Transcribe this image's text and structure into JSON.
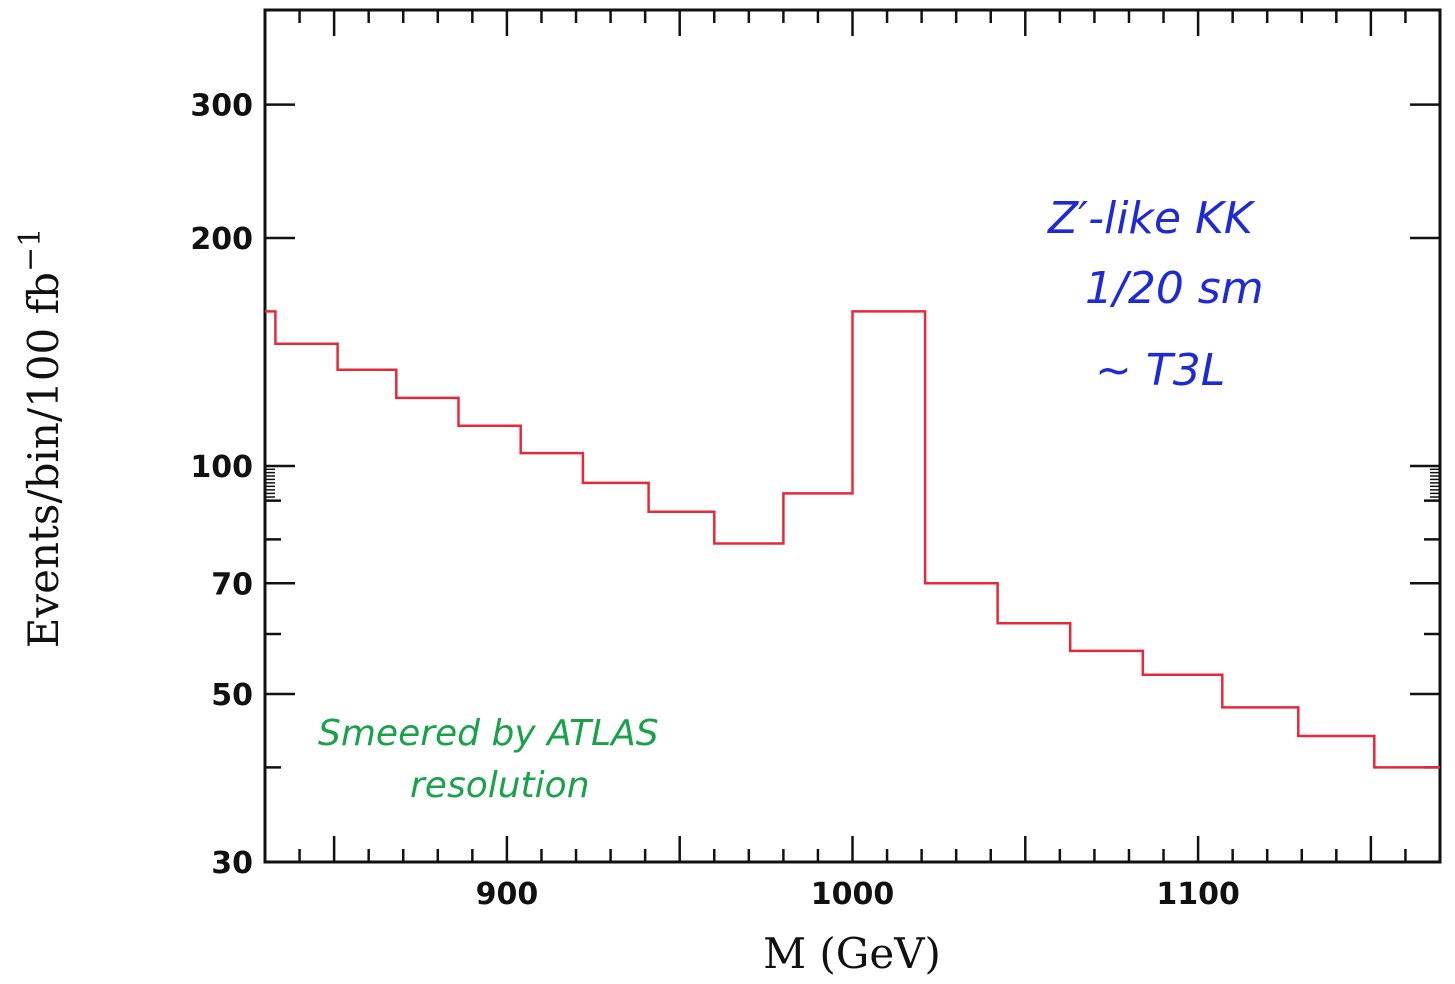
{
  "chart_data": {
    "type": "line",
    "title": "",
    "xlabel": "M (GeV)",
    "ylabel": "Events/bin/100 fb",
    "ylabel_superscript": "−1",
    "xlim": [
      830,
      1170
    ],
    "ylim": [
      30,
      400
    ],
    "yscale": "log",
    "grid": false,
    "x_ticks": [
      900,
      1000,
      1100
    ],
    "x_tick_labels": [
      "900",
      "1000",
      "1100"
    ],
    "y_ticks": [
      30,
      50,
      70,
      100,
      200,
      300
    ],
    "y_tick_labels": [
      "30",
      "50",
      "70",
      "100",
      "200",
      "300"
    ],
    "series": [
      {
        "color": "#e8283a",
        "style": "step",
        "bin_edges": [
          830,
          833,
          851,
          868,
          886,
          904,
          922,
          941,
          960,
          980,
          1000,
          1021,
          1042,
          1063,
          1084,
          1107,
          1129,
          1151,
          1170
        ],
        "values": [
          160,
          145,
          134,
          123,
          113,
          104,
          95,
          87,
          79,
          92,
          160,
          70,
          62,
          57,
          53,
          48,
          44,
          40
        ]
      }
    ],
    "annotations": [
      {
        "text": "Z′-like KK",
        "color": "#1e2ad9"
      },
      {
        "text": "1/20 sm",
        "color": "#1e2ad9"
      },
      {
        "text": "~ T3L",
        "color": "#1e2ad9"
      },
      {
        "text": "Smeered by ATLAS",
        "color": "#19a24a"
      },
      {
        "text": "resolution",
        "color": "#19a24a"
      }
    ]
  }
}
